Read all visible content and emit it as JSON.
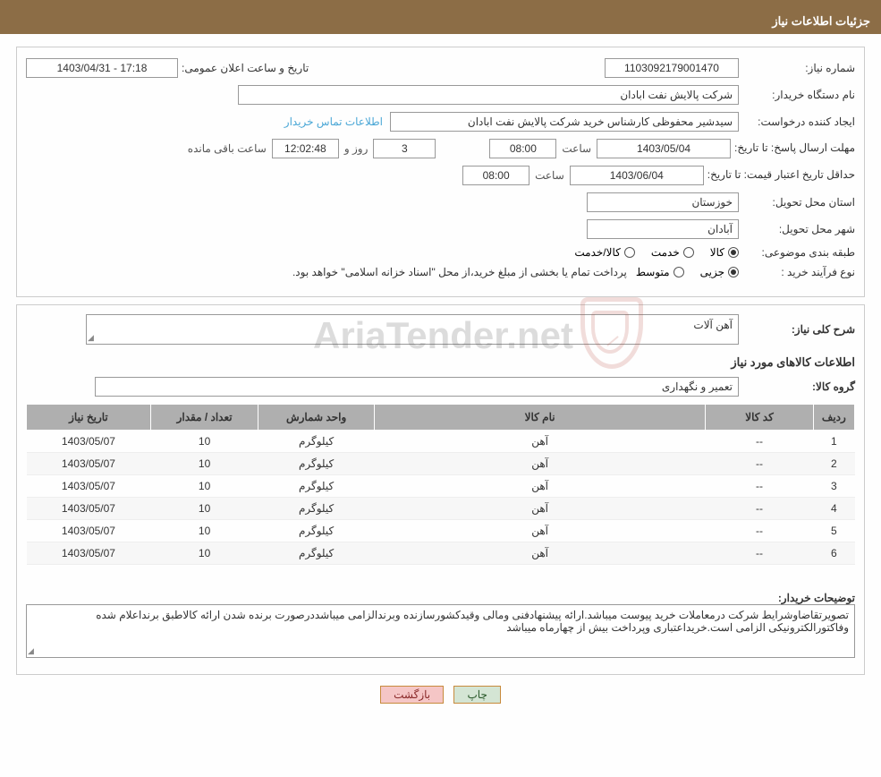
{
  "header": {
    "title": "جزئیات اطلاعات نیاز"
  },
  "fields": {
    "need_number_label": "شماره نیاز:",
    "need_number": "1103092179001470",
    "announce_label": "تاریخ و ساعت اعلان عمومی:",
    "announce_value": "17:18 - 1403/04/31",
    "buyer_org_label": "نام دستگاه خریدار:",
    "buyer_org": "شرکت پالایش نفت ابادان",
    "requester_label": "ایجاد کننده درخواست:",
    "requester": "سیدشیر محفوظی کارشناس خرید  شرکت پالایش نفت ابادان",
    "contact_link": "اطلاعات تماس خریدار",
    "response_deadline_label": "مهلت ارسال پاسخ: تا تاریخ:",
    "response_date": "1403/05/04",
    "time_label": "ساعت",
    "response_time": "08:00",
    "days_val": "3",
    "days_and": "روز و",
    "countdown": "12:02:48",
    "remaining": "ساعت باقی مانده",
    "price_valid_label": "حداقل تاریخ اعتبار قیمت: تا تاریخ:",
    "price_valid_date": "1403/06/04",
    "price_valid_time": "08:00",
    "delivery_province_label": "استان محل تحویل:",
    "delivery_province": "خوزستان",
    "delivery_city_label": "شهر محل تحویل:",
    "delivery_city": "آبادان",
    "classification_label": "طبقه بندی موضوعی:",
    "opt_goods": "کالا",
    "opt_service": "خدمت",
    "opt_goods_service": "کالا/خدمت",
    "purchase_type_label": "نوع فرآیند خرید :",
    "opt_minor": "جزیی",
    "opt_medium": "متوسط",
    "payment_note": "پرداخت تمام یا بخشی از مبلغ خرید،از محل \"اسناد خزانه اسلامی\" خواهد بود."
  },
  "need": {
    "desc_label": "شرح کلی نیاز:",
    "desc_value": "آهن آلات",
    "goods_header": "اطلاعات کالاهای مورد نیاز",
    "group_label": "گروه کالا:",
    "group_value": "تعمیر و نگهداری"
  },
  "table": {
    "cols": [
      "ردیف",
      "کد کالا",
      "نام کالا",
      "واحد شمارش",
      "تعداد / مقدار",
      "تاریخ نیاز"
    ],
    "widths": [
      "5%",
      "13%",
      "40%",
      "14%",
      "13%",
      "15%"
    ],
    "rows": [
      [
        "1",
        "--",
        "آهن",
        "کیلوگرم",
        "10",
        "1403/05/07"
      ],
      [
        "2",
        "--",
        "آهن",
        "کیلوگرم",
        "10",
        "1403/05/07"
      ],
      [
        "3",
        "--",
        "آهن",
        "کیلوگرم",
        "10",
        "1403/05/07"
      ],
      [
        "4",
        "--",
        "آهن",
        "کیلوگرم",
        "10",
        "1403/05/07"
      ],
      [
        "5",
        "--",
        "آهن",
        "کیلوگرم",
        "10",
        "1403/05/07"
      ],
      [
        "6",
        "--",
        "آهن",
        "کیلوگرم",
        "10",
        "1403/05/07"
      ]
    ]
  },
  "buyer_notes": {
    "label": "توضیحات خریدار:",
    "text": "تصویرتقاضاوشرایط شرکت درمعاملات خرید پیوست میباشد.ارائه پیشنهادفنی ومالی وقیدکشورسازنده وبرندالزامی میباشددرصورت برنده شدن ارائه کالاطبق برنداعلام شده وفاکتورالکترونیکی الزامی است.خریداعتباری وپرداخت بیش از چهارماه میباشد"
  },
  "buttons": {
    "print": "چاپ",
    "back": "بازگشت"
  },
  "watermark": {
    "text": "AriaTender.net"
  },
  "colors": {
    "header_bg": "#8c6d46",
    "th_bg": "#afafaf",
    "link": "#4aa7d6",
    "shield": "#b84a3c"
  }
}
